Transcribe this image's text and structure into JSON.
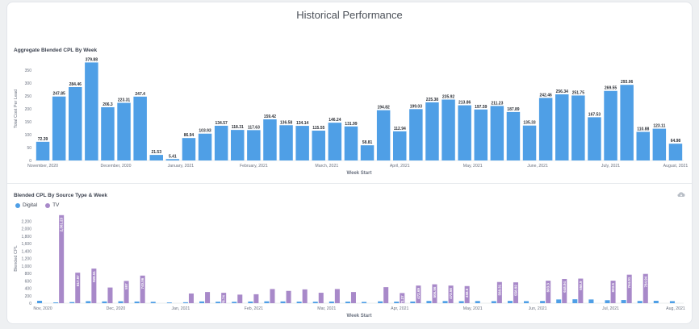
{
  "page": {
    "title": "Historical Performance"
  },
  "icons": {
    "download": "cloud-download-icon"
  },
  "colors": {
    "digital": "#4f9fe6",
    "tv": "#a889c9",
    "axis_text": "#6b7280"
  },
  "chart_data": [
    {
      "type": "bar",
      "title": "Aggregate Blended CPL By Week",
      "xlabel": "Week Start",
      "ylabel": "Total Cost Per Lead",
      "ylim": [
        0,
        400
      ],
      "yticks": [
        "0",
        "50",
        "100",
        "150",
        "200",
        "250",
        "300",
        "350"
      ],
      "values": [
        72.39,
        247.85,
        284.46,
        379.88,
        206.3,
        223.31,
        247.4,
        21.53,
        5.41,
        86.94,
        103.93,
        134.57,
        118.31,
        117.63,
        159.42,
        136.58,
        134.14,
        115.55,
        146.24,
        131.99,
        58.81,
        194.82,
        112.94,
        199.03,
        225.38,
        235.92,
        213.86,
        197.59,
        211.23,
        187.89,
        135.33,
        242.46,
        256.34,
        251.75,
        167.53,
        269.55,
        293.06,
        110.88,
        123.11,
        64.98
      ],
      "value_labels": [
        "72.39",
        "247.85",
        "284.46",
        "379.88",
        "206.3",
        "223.31",
        "247.4",
        "21.53",
        "5.41",
        "86.94",
        "103.93",
        "134.57",
        "118.31",
        "117.63",
        "159.42",
        "136.58",
        "134.14",
        "115.55",
        "146.24",
        "131.99",
        "58.81",
        "194.82",
        "112.94",
        "199.03",
        "225.38",
        "235.92",
        "213.86",
        "197.59",
        "211.23",
        "187.89",
        "135.33",
        "242.46",
        "256.34",
        "251.75",
        "167.53",
        "269.55",
        "293.06",
        "110.88",
        "123.11",
        "64.98"
      ],
      "month_labels": [
        {
          "label": "November, 2020",
          "index": 0
        },
        {
          "label": "December, 2020",
          "index": 4.5
        },
        {
          "label": "January, 2021",
          "index": 8.5
        },
        {
          "label": "February, 2021",
          "index": 13
        },
        {
          "label": "March, 2021",
          "index": 17.5
        },
        {
          "label": "April, 2021",
          "index": 22
        },
        {
          "label": "May, 2021",
          "index": 26.5
        },
        {
          "label": "June, 2021",
          "index": 30.5
        },
        {
          "label": "July, 2021",
          "index": 35
        },
        {
          "label": "August, 2021",
          "index": 39
        }
      ]
    },
    {
      "type": "bar",
      "title": "Blended CPL By Source Type & Week",
      "xlabel": "Week Start",
      "ylabel": "Blended CPL",
      "ylim": [
        0,
        2400
      ],
      "yticks": [
        "0",
        "200",
        "400",
        "600",
        "800",
        "1,000",
        "1,200",
        "1,400",
        "1,600",
        "1,800",
        "2,000",
        "2,200"
      ],
      "legend_position": "top-left",
      "series": [
        {
          "name": "Digital",
          "values": [
            65,
            22,
            30,
            55,
            48,
            52,
            45,
            38,
            20,
            25,
            48,
            40,
            38,
            45,
            50,
            48,
            42,
            40,
            45,
            42,
            35,
            50,
            42,
            45,
            60,
            58,
            55,
            58,
            55,
            62,
            55,
            60,
            100,
            105,
            100,
            80,
            85,
            60,
            65,
            55
          ]
        },
        {
          "name": "TV",
          "values": [
            0,
            2361.23,
            817.97,
            928.51,
            420,
            597,
            740.06,
            0,
            0,
            260,
            300,
            278.74,
            230,
            240,
            380,
            330,
            370,
            280,
            380,
            300,
            0,
            430,
            272.27,
            472.69,
            506.56,
            472.56,
            458.6,
            0,
            568.31,
            558.92,
            0,
            603.3,
            648.94,
            658.9,
            0,
            603.5,
            764.01,
            784.94,
            0,
            0
          ]
        }
      ],
      "tv_value_labels": [
        "",
        "2,361.23",
        "817.97",
        "928.51",
        "",
        "597",
        "740.06",
        "",
        "",
        "",
        "",
        "278.74",
        "",
        "",
        "",
        "",
        "",
        "",
        "",
        "",
        "",
        "",
        "272.27",
        "472.69",
        "506.56",
        "472.56",
        "458.6",
        "",
        "568.31",
        "558.92",
        "",
        "603.3",
        "648.94",
        "658.9",
        "",
        "603.5",
        "764.01",
        "784.94",
        "",
        ""
      ],
      "month_labels": [
        {
          "label": "Nov, 2020",
          "index": 0
        },
        {
          "label": "Dec, 2020",
          "index": 4.5
        },
        {
          "label": "Jan, 2021",
          "index": 8.5
        },
        {
          "label": "Feb, 2021",
          "index": 13
        },
        {
          "label": "Mar, 2021",
          "index": 17.5
        },
        {
          "label": "Apr, 2021",
          "index": 22
        },
        {
          "label": "May, 2021",
          "index": 26.5
        },
        {
          "label": "Jun, 2021",
          "index": 30.5
        },
        {
          "label": "Jul, 2021",
          "index": 35
        },
        {
          "label": "Aug, 2021",
          "index": 39
        }
      ]
    }
  ]
}
